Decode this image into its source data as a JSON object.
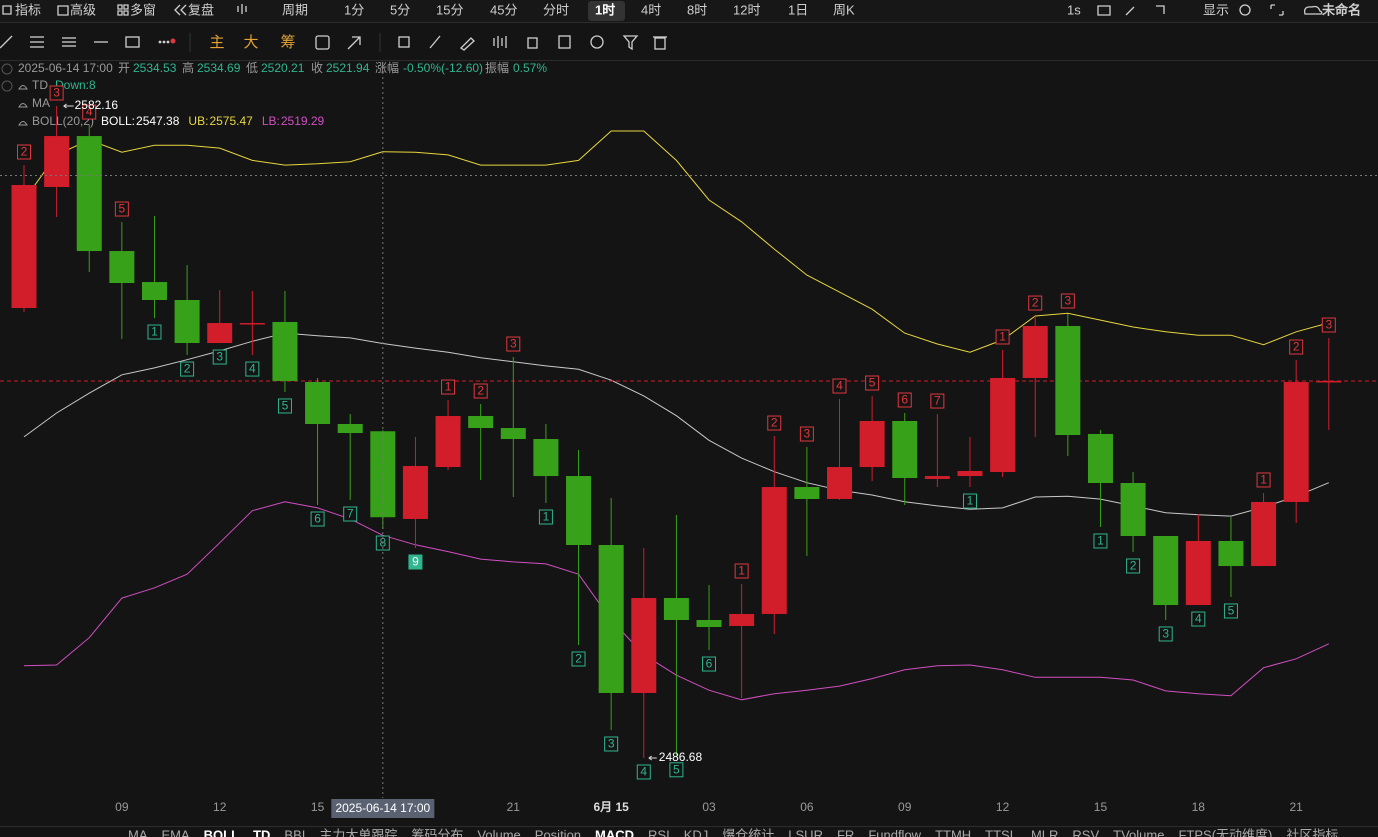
{
  "toolbar": {
    "items": [
      "指标",
      "高级",
      "多窗",
      "复盘",
      "周期",
      "1分",
      "5分",
      "15分",
      "45分",
      "分时",
      "1时",
      "4时",
      "8时",
      "12时",
      "1日",
      "周K"
    ],
    "right": [
      "1s",
      "显示",
      "未命名"
    ]
  },
  "draw_toolbar": {
    "items": [
      "主",
      "大",
      "筹"
    ]
  },
  "info": {
    "time": "2025-06-14 17:00",
    "labels": [
      "开",
      "高",
      "低",
      "收"
    ],
    "change_label": "涨幅",
    "change": "-0.50%(-12.60)",
    "amp_label": "振幅",
    "amp": "0.57%"
  },
  "indicators": {
    "td": "TD",
    "td_state": "Down:8",
    "ma": "MA",
    "boll": "BOLL(20,2)"
  },
  "bottom_tabs": [
    "MA",
    "EMA",
    "BOLL",
    "TD",
    "BBI",
    "主力大单跟踪",
    "筹码分布",
    "Volume",
    "Position",
    "MACD",
    "RSI",
    "KDJ",
    "爆仓统计",
    "LSUR",
    "FR",
    "Fundflow",
    "TTMH",
    "TTSL",
    "MLR",
    "RSV",
    "TVolume",
    "FTPS(无动维度)",
    "社区指标"
  ],
  "chart_data": {
    "type": "candlestick",
    "categories": [
      null,
      null,
      null,
      "09",
      null,
      null,
      "12",
      null,
      null,
      "15",
      null,
      null,
      null,
      null,
      null,
      "21",
      null,
      null,
      "6月 15",
      null,
      null,
      "03",
      null,
      null,
      "06",
      null,
      null,
      "09",
      null,
      null,
      "12",
      null,
      null,
      "15",
      null,
      null,
      "18",
      null,
      null,
      "21",
      null
    ],
    "open": [
      2552.58,
      2570.3,
      2577.76,
      2560.92,
      2556.38,
      2553.75,
      2547.45,
      2550.23,
      2550.53,
      2541.74,
      2535.59,
      2534.53,
      2521.68,
      2529.29,
      2536.76,
      2535.0,
      2533.39,
      2527.97,
      2517.87,
      2496.2,
      2510.11,
      2506.89,
      2506.01,
      2507.77,
      2526.36,
      2524.61,
      2529.29,
      2536.03,
      2527.54,
      2527.97,
      2528.56,
      2542.33,
      2549.94,
      2534.13,
      2526.95,
      2519.19,
      2509.08,
      2518.46,
      2514.79,
      2524.17,
      2541.74
    ],
    "high": [
      2573.52,
      2582.16,
      2579.37,
      2565.17,
      2566.05,
      2558.87,
      2555.21,
      2555.07,
      2555.07,
      2542.33,
      2537.05,
      2534.69,
      2533.69,
      2539.1,
      2538.52,
      2545.4,
      2535.59,
      2531.78,
      2524.75,
      2517.43,
      2522.26,
      2512.01,
      2512.16,
      2533.83,
      2532.22,
      2539.25,
      2539.69,
      2537.2,
      2537.05,
      2533.69,
      2546.43,
      2551.4,
      2551.7,
      2534.71,
      2528.56,
      2519.19,
      2522.41,
      2521.97,
      2525.49,
      2544.96,
      2548.18
    ],
    "low": [
      2552.0,
      2565.9,
      2557.85,
      2548.04,
      2551.11,
      2545.69,
      2547.45,
      2545.69,
      2540.28,
      2523.73,
      2524.46,
      2520.21,
      2517.43,
      2528.85,
      2527.39,
      2524.9,
      2524.02,
      2503.23,
      2490.78,
      2486.68,
      2487.0,
      2502.49,
      2495.46,
      2504.84,
      2516.26,
      2524.46,
      2527.24,
      2523.73,
      2526.36,
      2526.36,
      2527.83,
      2533.69,
      2530.9,
      2520.51,
      2516.85,
      2506.89,
      2509.08,
      2510.26,
      2514.79,
      2521.09,
      2534.71
    ],
    "close": [
      2570.59,
      2577.76,
      2560.92,
      2556.24,
      2553.75,
      2547.45,
      2550.38,
      2550.38,
      2541.89,
      2535.59,
      2534.27,
      2521.94,
      2529.44,
      2536.76,
      2535.0,
      2533.39,
      2527.97,
      2517.87,
      2496.2,
      2510.11,
      2506.89,
      2505.86,
      2507.77,
      2526.36,
      2524.61,
      2529.29,
      2536.03,
      2527.68,
      2527.97,
      2528.71,
      2542.33,
      2549.94,
      2533.98,
      2526.95,
      2519.19,
      2509.08,
      2518.46,
      2514.79,
      2524.17,
      2541.74,
      2541.89
    ],
    "up_color": "#d21d2b",
    "down_color": "#38a11a",
    "ylim": [
      2480.82,
      2589.19
    ],
    "bands": [
      {
        "label": "BOLL:",
        "color": "#c9c9c9",
        "values": [
          2533.7,
          2537.2,
          2540.1,
          2542.8,
          2543.8,
          2545.0,
          2546.3,
          2547.7,
          2548.9,
          2548.5,
          2548.2,
          2547.38,
          2546.7,
          2546.1,
          2545.3,
          2544.7,
          2544.1,
          2543.6,
          2542.0,
          2539.7,
          2536.8,
          2533.2,
          2530.6,
          2528.6,
          2527.0,
          2525.9,
          2525.2,
          2524.2,
          2523.6,
          2523.1,
          2523.3,
          2524.9,
          2525.0,
          2524.6,
          2523.6,
          2522.6,
          2522.3,
          2522.1,
          2523.4,
          2525.0,
          2527.0
        ]
      },
      {
        "label": "UB:",
        "color": "#e8d63c",
        "values": [
          2568.4,
          2575.0,
          2577.2,
          2575.4,
          2576.4,
          2576.4,
          2576.0,
          2574.2,
          2573.5,
          2573.7,
          2574.0,
          2575.47,
          2575.4,
          2575.0,
          2573.5,
          2573.5,
          2573.5,
          2574.2,
          2578.5,
          2578.5,
          2574.2,
          2568.4,
          2565.2,
          2561.2,
          2557.4,
          2554.9,
          2552.4,
          2548.9,
          2547.3,
          2546.1,
          2547.9,
          2551.4,
          2551.8,
          2550.8,
          2549.8,
          2549.1,
          2548.6,
          2548.6,
          2547.2,
          2549.1,
          2550.4
        ]
      },
      {
        "label": "LB:",
        "color": "#d24fc2",
        "values": [
          2500.2,
          2500.3,
          2504.3,
          2510.1,
          2511.6,
          2513.6,
          2518.2,
          2522.9,
          2524.2,
          2523.3,
          2521.7,
          2519.29,
          2517.9,
          2516.9,
          2515.8,
          2515.4,
          2515.1,
          2513.6,
          2506.9,
          2501.8,
          2498.8,
          2496.6,
          2495.2,
          2496.1,
          2496.6,
          2497.2,
          2498.3,
          2499.6,
          2500.2,
          2500.3,
          2499.6,
          2498.5,
          2498.5,
          2498.5,
          2498.1,
          2496.5,
          2496.1,
          2495.8,
          2499.9,
          2501.2,
          2503.4
        ]
      }
    ],
    "td_up": [
      2,
      3,
      4,
      5,
      null,
      null,
      null,
      null,
      null,
      null,
      null,
      null,
      null,
      1,
      2,
      3,
      null,
      null,
      null,
      null,
      null,
      null,
      1,
      2,
      3,
      4,
      5,
      6,
      7,
      null,
      1,
      2,
      3,
      null,
      null,
      null,
      null,
      null,
      1,
      2,
      3
    ],
    "td_down": [
      null,
      null,
      null,
      null,
      1,
      2,
      3,
      4,
      5,
      6,
      7,
      8,
      9,
      null,
      null,
      null,
      1,
      2,
      3,
      4,
      5,
      6,
      null,
      null,
      null,
      null,
      null,
      null,
      null,
      1,
      null,
      null,
      null,
      1,
      2,
      3,
      4,
      5,
      null,
      null,
      null
    ],
    "td_up_color": "#e0383f",
    "td_down_color": "#2fb58f"
  }
}
